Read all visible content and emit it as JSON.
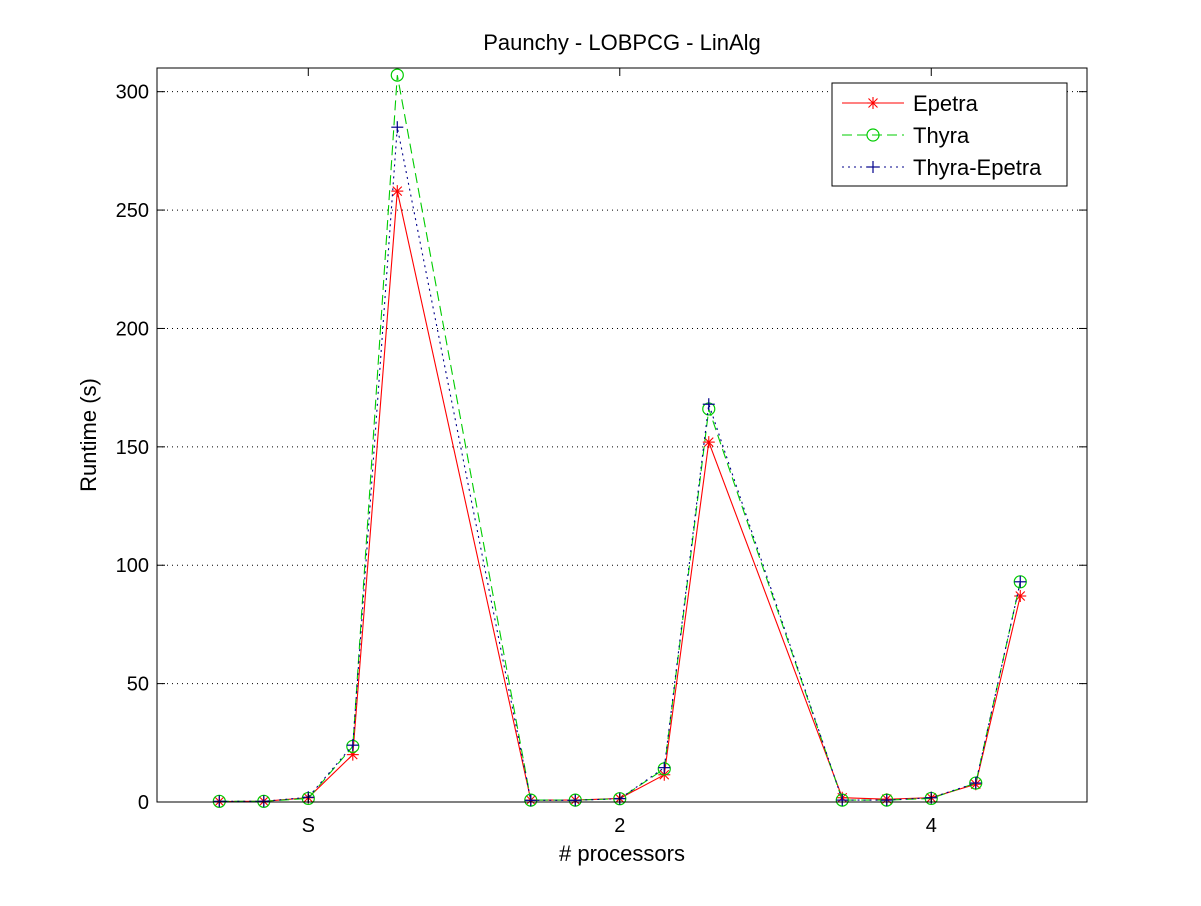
{
  "chart_data": {
    "type": "line",
    "title": "Paunchy - LOBPCG - LinAlg",
    "xlabel": "# processors",
    "ylabel": "Runtime (s)",
    "ylim": [
      0,
      310
    ],
    "yticks": [
      0,
      50,
      100,
      150,
      200,
      250,
      300
    ],
    "grid": "horizontal-dotted",
    "legend_position": "top-right",
    "groups": [
      "S",
      "2",
      "4"
    ],
    "x": [
      1,
      2,
      3,
      4,
      5,
      8,
      9,
      10,
      11,
      12,
      15,
      16,
      17,
      18,
      19
    ],
    "xlim": [
      -0.4,
      20.5
    ],
    "xtick_positions": [
      3,
      10,
      17
    ],
    "series": [
      {
        "name": "Epetra",
        "color": "#ff0000",
        "line_style": "solid",
        "marker": "asterisk",
        "values": [
          0.2,
          0.3,
          1.8,
          20,
          258,
          0.8,
          0.8,
          1.5,
          11.5,
          152,
          1.8,
          1.2,
          1.8,
          7.5,
          87
        ]
      },
      {
        "name": "Thyra",
        "color": "#00cc00",
        "line_style": "dashed",
        "marker": "circle",
        "values": [
          0.3,
          0.3,
          1.5,
          23.5,
          307,
          0.8,
          0.8,
          1.4,
          14,
          166,
          0.8,
          0.8,
          1.5,
          8,
          93
        ]
      },
      {
        "name": "Thyra-Epetra",
        "color": "#00008b",
        "line_style": "dotted",
        "marker": "plus",
        "values": [
          0.3,
          0.3,
          2,
          24,
          285,
          0.7,
          0.7,
          1.4,
          14.5,
          168,
          0.8,
          0.8,
          1.8,
          8,
          93
        ]
      }
    ]
  }
}
